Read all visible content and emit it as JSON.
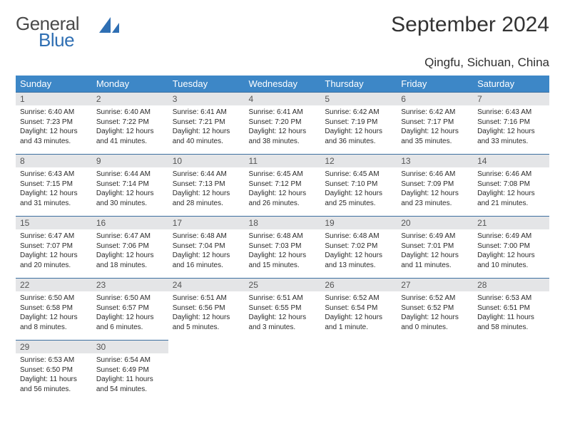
{
  "brand": {
    "word1": "General",
    "word2": "Blue"
  },
  "title": "September 2024",
  "location": "Qingfu, Sichuan, China",
  "colors": {
    "header_bg": "#3d87c7",
    "header_fg": "#ffffff",
    "daynum_bg": "#e4e5e7",
    "row_border": "#3d6fa0",
    "brand_blue": "#2f6fb3",
    "text": "#2a2a2a"
  },
  "weekdays": [
    "Sunday",
    "Monday",
    "Tuesday",
    "Wednesday",
    "Thursday",
    "Friday",
    "Saturday"
  ],
  "days": [
    {
      "n": "1",
      "sr": "6:40 AM",
      "ss": "7:23 PM",
      "dl": "12 hours and 43 minutes."
    },
    {
      "n": "2",
      "sr": "6:40 AM",
      "ss": "7:22 PM",
      "dl": "12 hours and 41 minutes."
    },
    {
      "n": "3",
      "sr": "6:41 AM",
      "ss": "7:21 PM",
      "dl": "12 hours and 40 minutes."
    },
    {
      "n": "4",
      "sr": "6:41 AM",
      "ss": "7:20 PM",
      "dl": "12 hours and 38 minutes."
    },
    {
      "n": "5",
      "sr": "6:42 AM",
      "ss": "7:19 PM",
      "dl": "12 hours and 36 minutes."
    },
    {
      "n": "6",
      "sr": "6:42 AM",
      "ss": "7:17 PM",
      "dl": "12 hours and 35 minutes."
    },
    {
      "n": "7",
      "sr": "6:43 AM",
      "ss": "7:16 PM",
      "dl": "12 hours and 33 minutes."
    },
    {
      "n": "8",
      "sr": "6:43 AM",
      "ss": "7:15 PM",
      "dl": "12 hours and 31 minutes."
    },
    {
      "n": "9",
      "sr": "6:44 AM",
      "ss": "7:14 PM",
      "dl": "12 hours and 30 minutes."
    },
    {
      "n": "10",
      "sr": "6:44 AM",
      "ss": "7:13 PM",
      "dl": "12 hours and 28 minutes."
    },
    {
      "n": "11",
      "sr": "6:45 AM",
      "ss": "7:12 PM",
      "dl": "12 hours and 26 minutes."
    },
    {
      "n": "12",
      "sr": "6:45 AM",
      "ss": "7:10 PM",
      "dl": "12 hours and 25 minutes."
    },
    {
      "n": "13",
      "sr": "6:46 AM",
      "ss": "7:09 PM",
      "dl": "12 hours and 23 minutes."
    },
    {
      "n": "14",
      "sr": "6:46 AM",
      "ss": "7:08 PM",
      "dl": "12 hours and 21 minutes."
    },
    {
      "n": "15",
      "sr": "6:47 AM",
      "ss": "7:07 PM",
      "dl": "12 hours and 20 minutes."
    },
    {
      "n": "16",
      "sr": "6:47 AM",
      "ss": "7:06 PM",
      "dl": "12 hours and 18 minutes."
    },
    {
      "n": "17",
      "sr": "6:48 AM",
      "ss": "7:04 PM",
      "dl": "12 hours and 16 minutes."
    },
    {
      "n": "18",
      "sr": "6:48 AM",
      "ss": "7:03 PM",
      "dl": "12 hours and 15 minutes."
    },
    {
      "n": "19",
      "sr": "6:48 AM",
      "ss": "7:02 PM",
      "dl": "12 hours and 13 minutes."
    },
    {
      "n": "20",
      "sr": "6:49 AM",
      "ss": "7:01 PM",
      "dl": "12 hours and 11 minutes."
    },
    {
      "n": "21",
      "sr": "6:49 AM",
      "ss": "7:00 PM",
      "dl": "12 hours and 10 minutes."
    },
    {
      "n": "22",
      "sr": "6:50 AM",
      "ss": "6:58 PM",
      "dl": "12 hours and 8 minutes."
    },
    {
      "n": "23",
      "sr": "6:50 AM",
      "ss": "6:57 PM",
      "dl": "12 hours and 6 minutes."
    },
    {
      "n": "24",
      "sr": "6:51 AM",
      "ss": "6:56 PM",
      "dl": "12 hours and 5 minutes."
    },
    {
      "n": "25",
      "sr": "6:51 AM",
      "ss": "6:55 PM",
      "dl": "12 hours and 3 minutes."
    },
    {
      "n": "26",
      "sr": "6:52 AM",
      "ss": "6:54 PM",
      "dl": "12 hours and 1 minute."
    },
    {
      "n": "27",
      "sr": "6:52 AM",
      "ss": "6:52 PM",
      "dl": "12 hours and 0 minutes."
    },
    {
      "n": "28",
      "sr": "6:53 AM",
      "ss": "6:51 PM",
      "dl": "11 hours and 58 minutes."
    },
    {
      "n": "29",
      "sr": "6:53 AM",
      "ss": "6:50 PM",
      "dl": "11 hours and 56 minutes."
    },
    {
      "n": "30",
      "sr": "6:54 AM",
      "ss": "6:49 PM",
      "dl": "11 hours and 54 minutes."
    }
  ],
  "labels": {
    "sunrise": "Sunrise:",
    "sunset": "Sunset:",
    "daylight": "Daylight:"
  },
  "calendar": {
    "start_weekday": 0,
    "total_days": 30,
    "cols": 7
  }
}
